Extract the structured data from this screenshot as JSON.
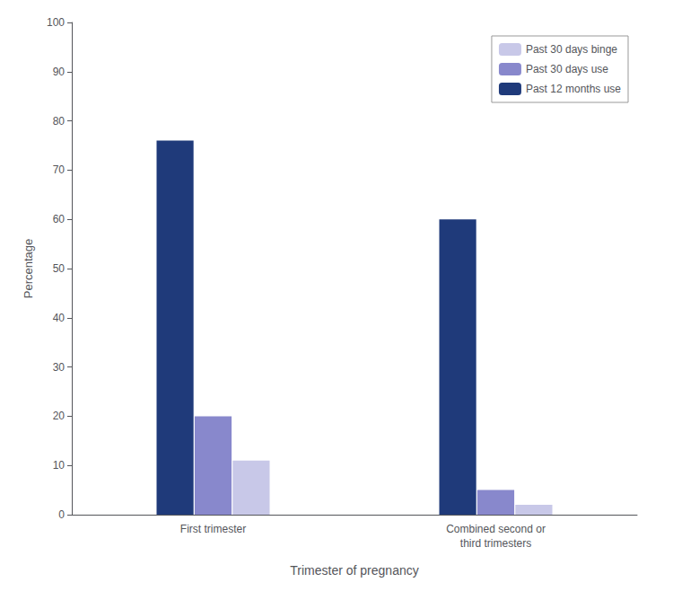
{
  "chart_data": {
    "type": "bar",
    "xlabel": "Trimester of pregnancy",
    "ylabel": "Percentage",
    "categories": [
      "First trimester",
      "Combined second or\nthird trimesters"
    ],
    "series": [
      {
        "name": "Past 12 months use",
        "color": "#1f3a7a",
        "values": [
          76,
          60
        ]
      },
      {
        "name": "Past 30 days use",
        "color": "#8888cc",
        "values": [
          20,
          5
        ]
      },
      {
        "name": "Past 30 days binge",
        "color": "#c8c8e8",
        "values": [
          11,
          2
        ]
      }
    ],
    "ylim": [
      0,
      100
    ],
    "yticks": [
      0,
      10,
      20,
      30,
      40,
      50,
      60,
      70,
      80,
      90,
      100
    ],
    "grid": false,
    "legend": "upper right"
  }
}
